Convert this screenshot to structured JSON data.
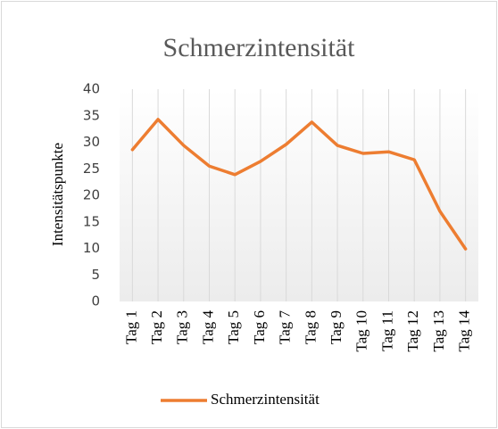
{
  "chart_data": {
    "type": "line",
    "title": "Schmerzintensität",
    "y_label": "Intensitätspunkte",
    "categories": [
      "Tag 1",
      "Tag 2",
      "Tag 3",
      "Tag 4",
      "Tag 5",
      "Tag 6",
      "Tag 7",
      "Tag 8",
      "Tag 9",
      "Tag 10",
      "Tag 11",
      "Tag 12",
      "Tag 13",
      "Tag 14"
    ],
    "series": [
      {
        "name": "Schmerzintensität",
        "color": "#ed7d31",
        "values": [
          28.6,
          34.3,
          29.4,
          25.5,
          23.9,
          26.4,
          29.6,
          33.8,
          29.4,
          27.9,
          28.2,
          26.7,
          17,
          9.9
        ]
      }
    ],
    "ylim": [
      0,
      40
    ],
    "yticks": [
      0,
      5,
      10,
      15,
      20,
      25,
      30,
      35,
      40
    ],
    "grid": "x",
    "legend": "bottom"
  }
}
